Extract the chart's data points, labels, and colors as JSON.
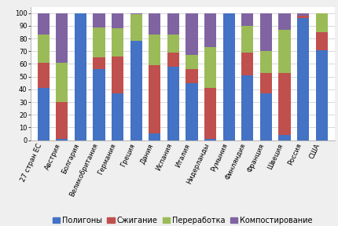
{
  "countries": [
    "27 стран ЕС",
    "Австрия",
    "Болгария",
    "Великобритания",
    "Германия",
    "Греция",
    "Дания",
    "Испания",
    "Италия",
    "Нидерланды",
    "Румыния",
    "Финляндия",
    "Франция",
    "Швеция",
    "Россия",
    "США"
  ],
  "categories": [
    "Полигоны",
    "Сжигание",
    "Переработка",
    "Компостирование"
  ],
  "colors": [
    "#4472C4",
    "#C0504D",
    "#9BBB59",
    "#8064A2"
  ],
  "values": {
    "Полигоны": [
      41,
      1,
      100,
      56,
      37,
      78,
      5,
      58,
      45,
      1,
      100,
      51,
      37,
      4,
      96,
      71
    ],
    "Сжигание": [
      20,
      29,
      0,
      9,
      29,
      0,
      54,
      11,
      11,
      40,
      0,
      18,
      16,
      49,
      2,
      14
    ],
    "Переработка": [
      22,
      31,
      0,
      24,
      22,
      21,
      24,
      14,
      11,
      32,
      0,
      21,
      17,
      34,
      0,
      15
    ],
    "Компостирование": [
      17,
      39,
      0,
      11,
      12,
      1,
      17,
      17,
      33,
      27,
      0,
      10,
      30,
      13,
      2,
      0
    ]
  },
  "ylim": [
    0,
    105
  ],
  "yticks": [
    0,
    10,
    20,
    30,
    40,
    50,
    60,
    70,
    80,
    90,
    100
  ],
  "bg_color": "#EFEFEF",
  "plot_bg": "#FFFFFF",
  "grid_color": "#C8C8C8",
  "legend_fontsize": 7.0,
  "tick_fontsize": 6.0,
  "xlabel_rotation": 65,
  "bar_width": 0.65
}
